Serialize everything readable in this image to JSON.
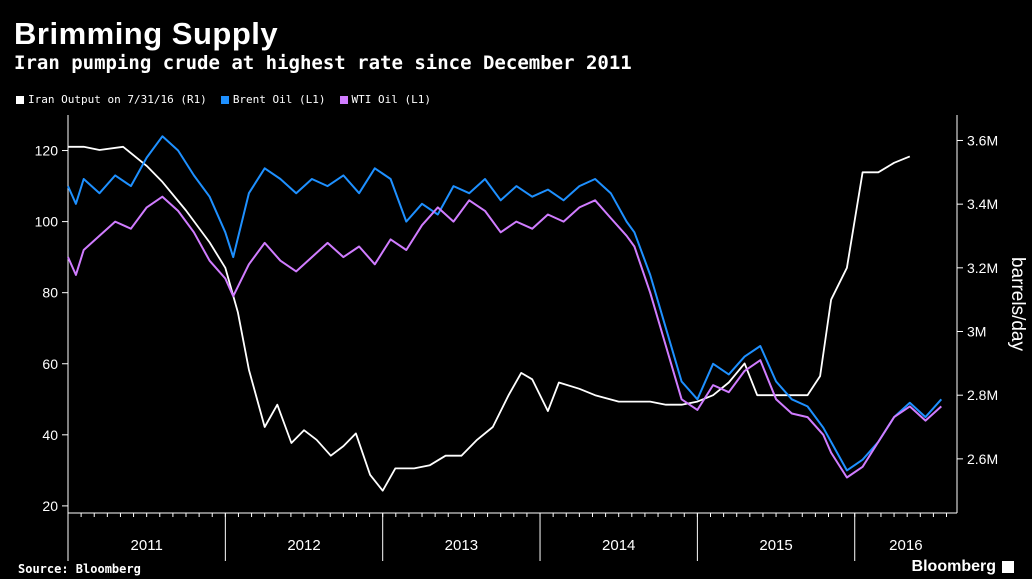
{
  "title": "Brimming Supply",
  "subtitle": "Iran pumping crude at highest rate since December 2011",
  "source": "Source: Bloomberg",
  "brand": "Bloomberg",
  "colors": {
    "iran": "#ffffff",
    "brent": "#1e90ff",
    "wti": "#d07cff",
    "background": "#000000",
    "axis": "#ffffff"
  },
  "chart_data": {
    "type": "line",
    "legend_placement": "top-left",
    "ylabel_right": "barrels/day",
    "y_left": {
      "range": [
        18,
        130
      ],
      "ticks": [
        20,
        40,
        60,
        80,
        100,
        120
      ]
    },
    "y_right": {
      "range": [
        2.43,
        3.68
      ],
      "ticks": [
        2.6,
        2.8,
        3.0,
        3.2,
        3.4,
        3.6
      ],
      "tick_labels": [
        "2.6M",
        "2.8M",
        "3M",
        "3.2M",
        "3.4M",
        "3.6M"
      ]
    },
    "x_range": [
      2011.0,
      2016.65
    ],
    "x_year_labels": [
      "2011",
      "2012",
      "2013",
      "2014",
      "2015",
      "2016"
    ],
    "series": [
      {
        "name": "Iran Output on 7/31/16 (R1)",
        "axis": "right",
        "color": "#ffffff",
        "points": [
          [
            2011.0,
            3.58
          ],
          [
            2011.1,
            3.58
          ],
          [
            2011.2,
            3.57
          ],
          [
            2011.35,
            3.58
          ],
          [
            2011.5,
            3.52
          ],
          [
            2011.6,
            3.47
          ],
          [
            2011.75,
            3.38
          ],
          [
            2011.9,
            3.28
          ],
          [
            2012.0,
            3.2
          ],
          [
            2012.08,
            3.06
          ],
          [
            2012.15,
            2.88
          ],
          [
            2012.25,
            2.7
          ],
          [
            2012.33,
            2.77
          ],
          [
            2012.42,
            2.65
          ],
          [
            2012.5,
            2.69
          ],
          [
            2012.58,
            2.66
          ],
          [
            2012.67,
            2.61
          ],
          [
            2012.75,
            2.64
          ],
          [
            2012.83,
            2.68
          ],
          [
            2012.92,
            2.55
          ],
          [
            2013.0,
            2.5
          ],
          [
            2013.08,
            2.57
          ],
          [
            2013.2,
            2.57
          ],
          [
            2013.3,
            2.58
          ],
          [
            2013.4,
            2.61
          ],
          [
            2013.5,
            2.61
          ],
          [
            2013.6,
            2.66
          ],
          [
            2013.7,
            2.7
          ],
          [
            2013.8,
            2.8
          ],
          [
            2013.88,
            2.87
          ],
          [
            2013.95,
            2.85
          ],
          [
            2014.05,
            2.75
          ],
          [
            2014.12,
            2.84
          ],
          [
            2014.25,
            2.82
          ],
          [
            2014.35,
            2.8
          ],
          [
            2014.5,
            2.78
          ],
          [
            2014.6,
            2.78
          ],
          [
            2014.7,
            2.78
          ],
          [
            2014.8,
            2.77
          ],
          [
            2014.9,
            2.77
          ],
          [
            2015.0,
            2.78
          ],
          [
            2015.1,
            2.8
          ],
          [
            2015.2,
            2.84
          ],
          [
            2015.3,
            2.9
          ],
          [
            2015.38,
            2.8
          ],
          [
            2015.5,
            2.8
          ],
          [
            2015.6,
            2.8
          ],
          [
            2015.7,
            2.8
          ],
          [
            2015.78,
            2.86
          ],
          [
            2015.85,
            3.1
          ],
          [
            2015.95,
            3.2
          ],
          [
            2016.05,
            3.5
          ],
          [
            2016.15,
            3.5
          ],
          [
            2016.25,
            3.53
          ],
          [
            2016.35,
            3.55
          ]
        ]
      },
      {
        "name": "Brent Oil (L1)",
        "axis": "left",
        "color": "#1e90ff",
        "points": [
          [
            2011.0,
            110
          ],
          [
            2011.05,
            105
          ],
          [
            2011.1,
            112
          ],
          [
            2011.2,
            108
          ],
          [
            2011.3,
            113
          ],
          [
            2011.4,
            110
          ],
          [
            2011.5,
            118
          ],
          [
            2011.6,
            124
          ],
          [
            2011.7,
            120
          ],
          [
            2011.8,
            113
          ],
          [
            2011.9,
            107
          ],
          [
            2012.0,
            97
          ],
          [
            2012.05,
            90
          ],
          [
            2012.15,
            108
          ],
          [
            2012.25,
            115
          ],
          [
            2012.35,
            112
          ],
          [
            2012.45,
            108
          ],
          [
            2012.55,
            112
          ],
          [
            2012.65,
            110
          ],
          [
            2012.75,
            113
          ],
          [
            2012.85,
            108
          ],
          [
            2012.95,
            115
          ],
          [
            2013.05,
            112
          ],
          [
            2013.15,
            100
          ],
          [
            2013.25,
            105
          ],
          [
            2013.35,
            102
          ],
          [
            2013.45,
            110
          ],
          [
            2013.55,
            108
          ],
          [
            2013.65,
            112
          ],
          [
            2013.75,
            106
          ],
          [
            2013.85,
            110
          ],
          [
            2013.95,
            107
          ],
          [
            2014.05,
            109
          ],
          [
            2014.15,
            106
          ],
          [
            2014.25,
            110
          ],
          [
            2014.35,
            112
          ],
          [
            2014.45,
            108
          ],
          [
            2014.55,
            100
          ],
          [
            2014.6,
            97
          ],
          [
            2014.7,
            85
          ],
          [
            2014.8,
            70
          ],
          [
            2014.9,
            55
          ],
          [
            2015.0,
            50
          ],
          [
            2015.1,
            60
          ],
          [
            2015.2,
            57
          ],
          [
            2015.3,
            62
          ],
          [
            2015.4,
            65
          ],
          [
            2015.5,
            55
          ],
          [
            2015.6,
            50
          ],
          [
            2015.7,
            48
          ],
          [
            2015.8,
            42
          ],
          [
            2015.85,
            38
          ],
          [
            2015.95,
            30
          ],
          [
            2016.05,
            33
          ],
          [
            2016.15,
            38
          ],
          [
            2016.25,
            45
          ],
          [
            2016.35,
            49
          ],
          [
            2016.45,
            45
          ],
          [
            2016.55,
            50
          ]
        ]
      },
      {
        "name": "WTI Oil (L1)",
        "axis": "left",
        "color": "#d07cff",
        "points": [
          [
            2011.0,
            90
          ],
          [
            2011.05,
            85
          ],
          [
            2011.1,
            92
          ],
          [
            2011.2,
            96
          ],
          [
            2011.3,
            100
          ],
          [
            2011.4,
            98
          ],
          [
            2011.5,
            104
          ],
          [
            2011.6,
            107
          ],
          [
            2011.7,
            103
          ],
          [
            2011.8,
            97
          ],
          [
            2011.9,
            89
          ],
          [
            2012.0,
            84
          ],
          [
            2012.05,
            79
          ],
          [
            2012.15,
            88
          ],
          [
            2012.25,
            94
          ],
          [
            2012.35,
            89
          ],
          [
            2012.45,
            86
          ],
          [
            2012.55,
            90
          ],
          [
            2012.65,
            94
          ],
          [
            2012.75,
            90
          ],
          [
            2012.85,
            93
          ],
          [
            2012.95,
            88
          ],
          [
            2013.05,
            95
          ],
          [
            2013.15,
            92
          ],
          [
            2013.25,
            99
          ],
          [
            2013.35,
            104
          ],
          [
            2013.45,
            100
          ],
          [
            2013.55,
            106
          ],
          [
            2013.65,
            103
          ],
          [
            2013.75,
            97
          ],
          [
            2013.85,
            100
          ],
          [
            2013.95,
            98
          ],
          [
            2014.05,
            102
          ],
          [
            2014.15,
            100
          ],
          [
            2014.25,
            104
          ],
          [
            2014.35,
            106
          ],
          [
            2014.45,
            101
          ],
          [
            2014.55,
            96
          ],
          [
            2014.6,
            93
          ],
          [
            2014.7,
            80
          ],
          [
            2014.8,
            65
          ],
          [
            2014.9,
            50
          ],
          [
            2015.0,
            47
          ],
          [
            2015.1,
            54
          ],
          [
            2015.2,
            52
          ],
          [
            2015.3,
            58
          ],
          [
            2015.4,
            61
          ],
          [
            2015.5,
            50
          ],
          [
            2015.6,
            46
          ],
          [
            2015.7,
            45
          ],
          [
            2015.8,
            40
          ],
          [
            2015.85,
            35
          ],
          [
            2015.95,
            28
          ],
          [
            2016.05,
            31
          ],
          [
            2016.15,
            38
          ],
          [
            2016.25,
            45
          ],
          [
            2016.35,
            48
          ],
          [
            2016.45,
            44
          ],
          [
            2016.55,
            48
          ]
        ]
      }
    ]
  }
}
